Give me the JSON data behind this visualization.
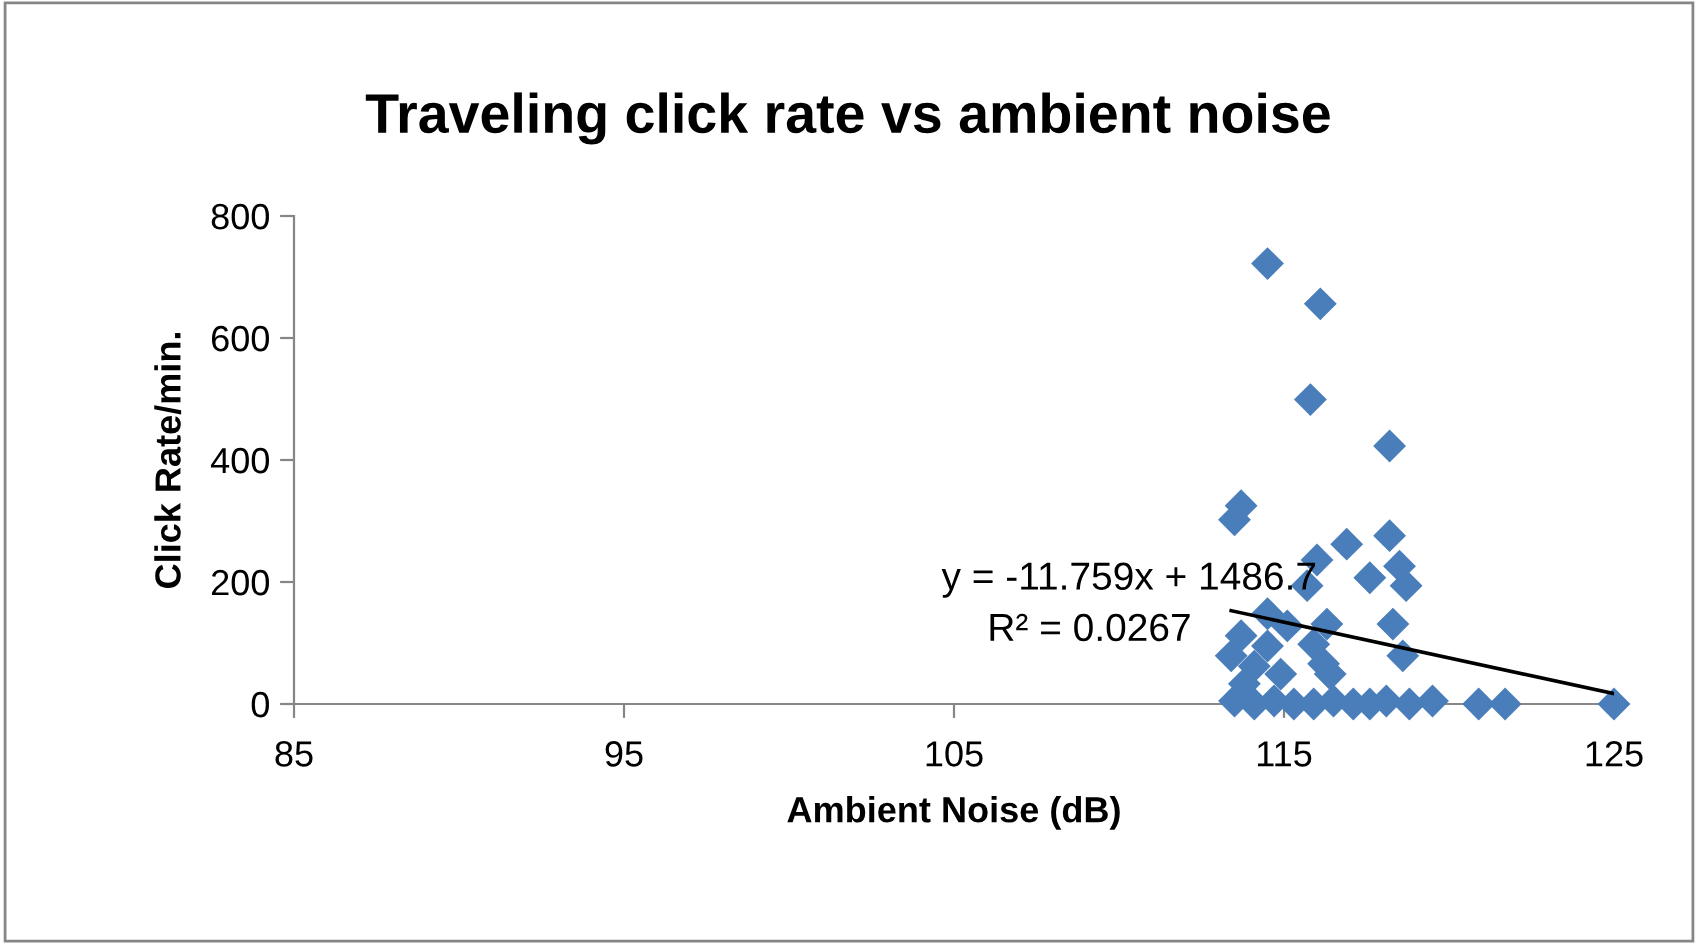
{
  "chart_data": {
    "type": "scatter",
    "title": "Traveling click rate vs ambient noise",
    "xlabel": "Ambient Noise (dB)",
    "ylabel": "Click Rate/min.",
    "xlim": [
      85,
      125
    ],
    "xticks": [
      85,
      95,
      105,
      115,
      125
    ],
    "ylim": [
      0,
      800
    ],
    "yticks": [
      0,
      200,
      400,
      600,
      800
    ],
    "grid": false,
    "series": [
      {
        "marker": "diamond",
        "color": "#4a7ebb",
        "x": [
          114.5,
          116.1,
          115.8,
          118.2,
          113.7,
          113.5,
          116.9,
          118.2,
          116.0,
          118.5,
          117.6,
          118.7,
          115.7,
          114.5,
          115.1,
          116.3,
          118.3,
          113.7,
          115.9,
          114.5,
          113.4,
          118.6,
          116.2,
          114.1,
          114.9,
          116.4,
          113.8,
          113.5,
          114.1,
          114.7,
          115.3,
          115.9,
          116.5,
          117.1,
          117.6,
          118.1,
          118.8,
          119.5,
          120.9,
          121.7,
          125.0
        ],
        "values": [
          722,
          656,
          499,
          423,
          325,
          302,
          262,
          276,
          236,
          226,
          207,
          194,
          194,
          148,
          128,
          131,
          131,
          112,
          98,
          95,
          79,
          79,
          66,
          62,
          49,
          49,
          33,
          5,
          0,
          5,
          0,
          0,
          5,
          0,
          0,
          5,
          0,
          5,
          0,
          0,
          0
        ]
      },
      {
        "type": "line",
        "marker": "none",
        "color": "#000000",
        "x": [
          113.4,
          125
        ],
        "values": [
          153,
          17
        ]
      }
    ],
    "annotations": [
      "y = -11.759x + 1486.7",
      "R² = 0.0267"
    ]
  }
}
